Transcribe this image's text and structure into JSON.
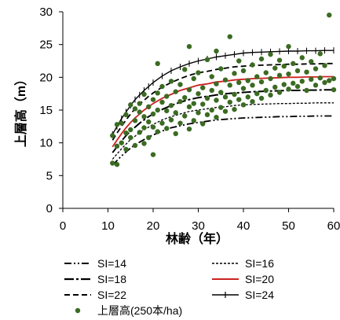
{
  "chart_data": {
    "type": "scatter",
    "xlabel": "林齢（年）",
    "ylabel": "上層高（m）",
    "xlim": [
      0,
      60
    ],
    "ylim": [
      0,
      30
    ],
    "xticks": [
      0,
      10,
      20,
      30,
      40,
      50,
      60
    ],
    "yticks": [
      0,
      5,
      10,
      15,
      20,
      25,
      30
    ],
    "grid": false,
    "legend_position": "bottom",
    "curve_x": [
      11,
      12,
      13,
      14,
      15,
      16,
      17,
      18,
      19,
      20,
      22,
      24,
      26,
      28,
      30,
      32,
      34,
      36,
      38,
      40,
      42,
      44,
      46,
      48,
      50,
      52,
      54,
      56,
      58,
      60
    ],
    "series": [
      {
        "name": "SI=14",
        "style": "dash-dot-dot",
        "color": "#000000",
        "kind": "curve",
        "values": [
          6.6,
          7.3,
          8.0,
          8.6,
          9.2,
          9.7,
          10.1,
          10.5,
          10.9,
          11.2,
          11.8,
          12.3,
          12.6,
          12.9,
          13.1,
          13.3,
          13.5,
          13.6,
          13.7,
          13.8,
          13.85,
          13.9,
          13.95,
          14.0,
          14.0,
          14.05,
          14.05,
          14.1,
          14.1,
          14.1
        ]
      },
      {
        "name": "SI=16",
        "style": "short-dash",
        "color": "#000000",
        "kind": "curve",
        "values": [
          7.5,
          8.3,
          9.1,
          9.8,
          10.5,
          11.0,
          11.6,
          12.0,
          12.4,
          12.8,
          13.5,
          14.0,
          14.4,
          14.8,
          15.0,
          15.2,
          15.4,
          15.5,
          15.7,
          15.8,
          15.85,
          15.9,
          15.95,
          16.0,
          16.0,
          16.05,
          16.05,
          16.1,
          16.1,
          16.1
        ]
      },
      {
        "name": "SI=18",
        "style": "long-dash-dot",
        "color": "#000000",
        "kind": "curve",
        "values": [
          8.5,
          9.4,
          10.3,
          11.1,
          11.8,
          12.4,
          13.0,
          13.5,
          14.0,
          14.4,
          15.1,
          15.7,
          16.2,
          16.6,
          16.9,
          17.1,
          17.3,
          17.5,
          17.6,
          17.7,
          17.8,
          17.85,
          17.9,
          17.95,
          18.0,
          18.0,
          18.05,
          18.05,
          18.1,
          18.1
        ]
      },
      {
        "name": "SI=20",
        "style": "solid",
        "color": "#cc2222",
        "kind": "curve",
        "values": [
          9.4,
          10.4,
          11.4,
          12.3,
          13.1,
          13.8,
          14.4,
          15.0,
          15.5,
          16.0,
          16.8,
          17.4,
          18.0,
          18.4,
          18.8,
          19.0,
          19.3,
          19.4,
          19.6,
          19.7,
          19.8,
          19.85,
          19.9,
          19.95,
          20.0,
          20.0,
          20.05,
          20.05,
          20.1,
          20.1
        ]
      },
      {
        "name": "SI=22",
        "style": "medium-dash",
        "color": "#000000",
        "kind": "curve",
        "values": [
          10.4,
          11.5,
          12.5,
          13.5,
          14.4,
          15.2,
          15.9,
          16.5,
          17.1,
          17.6,
          18.5,
          19.2,
          19.8,
          20.3,
          20.7,
          20.9,
          21.2,
          21.4,
          21.6,
          21.7,
          21.8,
          21.85,
          21.9,
          21.95,
          22.0,
          22.0,
          22.05,
          22.05,
          22.1,
          22.1
        ]
      },
      {
        "name": "SI=24",
        "style": "solid-plus",
        "color": "#000000",
        "kind": "curve",
        "values": [
          11.3,
          12.5,
          13.7,
          14.7,
          15.7,
          16.6,
          17.3,
          18.0,
          18.6,
          19.2,
          20.2,
          21.0,
          21.6,
          22.1,
          22.5,
          22.8,
          23.1,
          23.3,
          23.5,
          23.7,
          23.8,
          23.85,
          23.9,
          23.95,
          24.0,
          24.0,
          24.05,
          24.05,
          24.1,
          24.1
        ]
      },
      {
        "name": "上層高(250本/ha)",
        "kind": "points",
        "color": "#3b6b22",
        "points": [
          [
            11,
            6.9
          ],
          [
            11,
            11.1
          ],
          [
            12,
            6.7
          ],
          [
            12,
            9.5
          ],
          [
            12,
            12.8
          ],
          [
            13,
            10.0
          ],
          [
            13,
            13.0
          ],
          [
            14,
            9.0
          ],
          [
            14,
            11.5
          ],
          [
            14,
            14.3
          ],
          [
            15,
            10.8
          ],
          [
            15,
            12.0
          ],
          [
            15,
            15.8
          ],
          [
            16,
            9.6
          ],
          [
            16,
            13.4
          ],
          [
            16,
            15.2
          ],
          [
            17,
            11.6
          ],
          [
            17,
            14.7
          ],
          [
            17,
            16.0
          ],
          [
            18,
            9.9
          ],
          [
            18,
            12.3
          ],
          [
            18,
            14.0
          ],
          [
            18,
            17.4
          ],
          [
            19,
            10.8
          ],
          [
            19,
            13.2
          ],
          [
            19,
            15.5
          ],
          [
            20,
            8.2
          ],
          [
            20,
            12.4
          ],
          [
            20,
            14.4
          ],
          [
            20,
            16.6
          ],
          [
            21,
            11.7
          ],
          [
            21,
            15.0
          ],
          [
            21,
            17.6
          ],
          [
            21,
            22.1
          ],
          [
            22,
            13.0
          ],
          [
            22,
            16.2
          ],
          [
            22,
            18.6
          ],
          [
            23,
            12.2
          ],
          [
            23,
            14.9
          ],
          [
            23,
            17.1
          ],
          [
            24,
            13.5
          ],
          [
            24,
            15.7
          ],
          [
            24,
            19.4
          ],
          [
            25,
            11.4
          ],
          [
            25,
            14.6
          ],
          [
            25,
            17.8
          ],
          [
            26,
            13.0
          ],
          [
            26,
            16.3
          ],
          [
            26,
            18.9
          ],
          [
            27,
            14.1
          ],
          [
            27,
            16.9
          ],
          [
            27,
            21.2
          ],
          [
            28,
            12.1
          ],
          [
            28,
            15.5
          ],
          [
            28,
            18.1
          ],
          [
            28,
            24.7
          ],
          [
            29,
            13.4
          ],
          [
            29,
            16.0
          ],
          [
            29,
            19.8
          ],
          [
            30,
            14.6
          ],
          [
            30,
            17.5
          ],
          [
            30,
            20.7
          ],
          [
            31,
            12.9
          ],
          [
            31,
            15.9
          ],
          [
            31,
            18.4
          ],
          [
            32,
            14.3
          ],
          [
            32,
            16.8
          ],
          [
            32,
            22.7
          ],
          [
            33,
            15.0
          ],
          [
            33,
            18.0
          ],
          [
            33,
            20.1
          ],
          [
            34,
            13.9
          ],
          [
            34,
            16.5
          ],
          [
            34,
            19.0
          ],
          [
            34,
            24.0
          ],
          [
            35,
            15.4
          ],
          [
            35,
            17.7
          ],
          [
            35,
            21.3
          ],
          [
            36,
            14.8
          ],
          [
            36,
            17.0
          ],
          [
            36,
            19.6
          ],
          [
            37,
            16.2
          ],
          [
            37,
            18.8
          ],
          [
            37,
            26.2
          ],
          [
            38,
            15.1
          ],
          [
            38,
            17.4
          ],
          [
            38,
            20.6
          ],
          [
            39,
            16.6
          ],
          [
            39,
            19.2
          ],
          [
            39,
            22.5
          ],
          [
            40,
            15.8
          ],
          [
            40,
            18.3
          ],
          [
            40,
            21.0
          ],
          [
            41,
            17.0
          ],
          [
            41,
            19.5
          ],
          [
            42,
            16.3
          ],
          [
            42,
            18.8
          ],
          [
            42,
            21.9
          ],
          [
            43,
            17.5
          ],
          [
            43,
            20.1
          ],
          [
            44,
            16.8
          ],
          [
            44,
            19.3
          ],
          [
            44,
            22.8
          ],
          [
            45,
            18.0
          ],
          [
            45,
            20.7
          ],
          [
            46,
            17.3
          ],
          [
            46,
            19.8
          ],
          [
            46,
            23.5
          ],
          [
            47,
            18.5
          ],
          [
            47,
            21.4
          ],
          [
            48,
            17.7
          ],
          [
            48,
            20.3
          ],
          [
            48,
            22.6
          ],
          [
            49,
            18.9
          ],
          [
            49,
            21.7
          ],
          [
            50,
            18.2
          ],
          [
            50,
            20.5
          ],
          [
            50,
            24.7
          ],
          [
            51,
            19.1
          ],
          [
            51,
            22.1
          ],
          [
            52,
            18.6
          ],
          [
            52,
            21.0
          ],
          [
            53,
            19.4
          ],
          [
            53,
            23.0
          ],
          [
            54,
            18.0
          ],
          [
            54,
            20.8
          ],
          [
            55,
            19.7
          ],
          [
            55,
            22.4
          ],
          [
            56,
            18.8
          ],
          [
            56,
            21.3
          ],
          [
            57,
            19.9
          ],
          [
            57,
            23.6
          ],
          [
            58,
            19.2
          ],
          [
            58,
            21.8
          ],
          [
            59,
            19.5
          ],
          [
            59,
            29.5
          ],
          [
            60,
            18.1
          ],
          [
            60,
            19.8
          ]
        ]
      }
    ]
  }
}
